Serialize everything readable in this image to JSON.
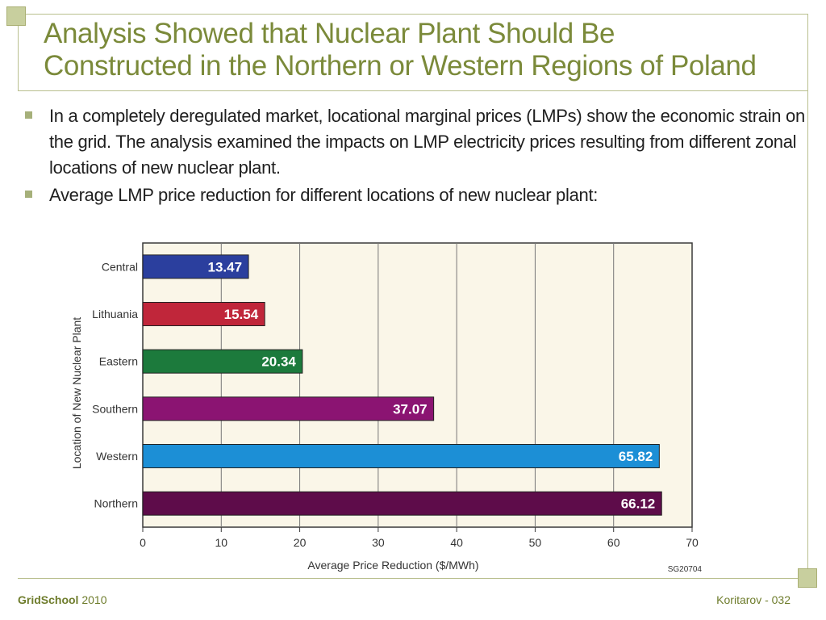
{
  "slide": {
    "title_lines": [
      "Analysis Showed that Nuclear Plant Should Be",
      "Constructed in the Northern or Western Regions of Poland"
    ],
    "bullets": [
      "In a completely deregulated market, locational marginal prices (LMPs) show the economic strain on the grid. The analysis examined the impacts on LMP electricity prices resulting from different zonal locations of new nuclear plant.",
      "Average LMP price reduction for different locations of new nuclear plant:"
    ],
    "footer": {
      "brand": "GridSchool",
      "year": "2010",
      "page": "Koritarov  - 032"
    }
  },
  "chart_data": {
    "type": "bar",
    "orientation": "horizontal",
    "categories": [
      "Central",
      "Lithuania",
      "Eastern",
      "Southern",
      "Western",
      "Northern"
    ],
    "values": [
      13.47,
      15.54,
      20.34,
      37.07,
      65.82,
      66.12
    ],
    "value_labels": [
      "13.47",
      "15.54",
      "20.34",
      "37.07",
      "65.82",
      "66.12"
    ],
    "bar_colors": [
      "#2b3f9e",
      "#c0263a",
      "#1c7a3c",
      "#8b1472",
      "#1c8fd6",
      "#5e0c4a"
    ],
    "xlabel": "Average Price Reduction ($/MWh)",
    "ylabel": "Location of New Nuclear Plant",
    "xlim": [
      0,
      70
    ],
    "xticks": [
      "0",
      "10",
      "20",
      "30",
      "40",
      "50",
      "60",
      "70"
    ],
    "grid": true,
    "plot_background": "#faf6e8",
    "figure_code": "SG20704"
  }
}
